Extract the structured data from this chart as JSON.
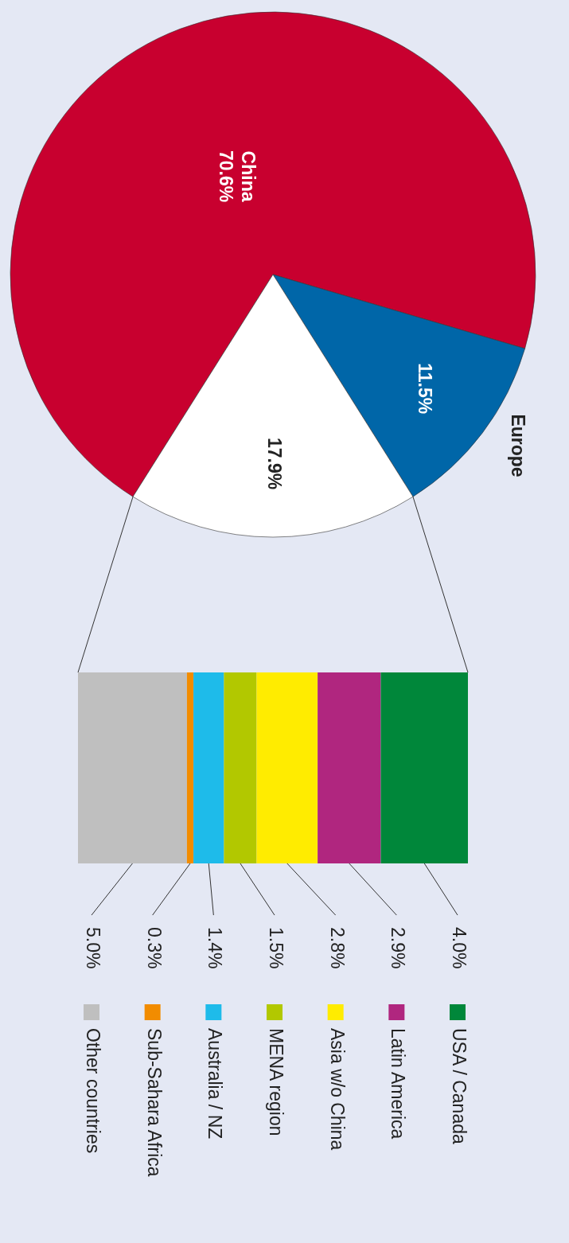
{
  "chart_data": [
    {
      "type": "pie",
      "categories": [
        "China",
        "Europe",
        null
      ],
      "values": [
        70.6,
        11.5,
        17.9
      ],
      "colors": [
        "#c8002f",
        "#0066a8",
        "#ffffff"
      ],
      "value_labels": [
        "70.6%",
        "11.5%",
        "17.9%"
      ]
    },
    {
      "type": "bar",
      "stacked": true,
      "orientation": "horizontal",
      "categories": [
        null
      ],
      "legend": "bottom",
      "series": [
        {
          "name": "Other countries",
          "color": "#bfbfbf",
          "values": [
            5.0
          ],
          "value_labels": [
            "5.0%"
          ]
        },
        {
          "name": "Sub-Sahara Africa",
          "color": "#f28c00",
          "values": [
            0.3
          ],
          "value_labels": [
            "0.3%"
          ]
        },
        {
          "name": "Australia / NZ",
          "color": "#1ebbea",
          "values": [
            1.4
          ],
          "value_labels": [
            "1.4%"
          ]
        },
        {
          "name": "MENA region",
          "color": "#b2c800",
          "values": [
            1.5
          ],
          "value_labels": [
            "1.5%"
          ]
        },
        {
          "name": "Asia w/o China",
          "color": "#ffec00",
          "values": [
            2.8
          ],
          "value_labels": [
            "2.8%"
          ]
        },
        {
          "name": "Latin America",
          "color": "#b0267f",
          "values": [
            2.9
          ],
          "value_labels": [
            "2.9%"
          ]
        },
        {
          "name": "USA / Canada",
          "color": "#00873a",
          "values": [
            4.0
          ],
          "value_labels": [
            "4.0%"
          ]
        }
      ]
    }
  ]
}
